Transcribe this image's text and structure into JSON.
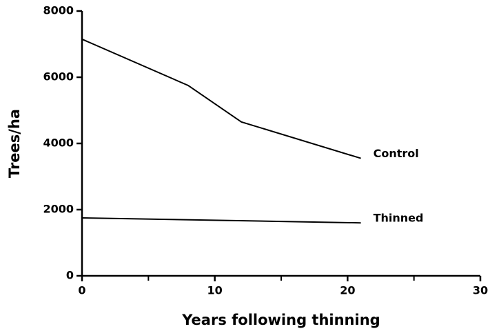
{
  "chart_data": {
    "type": "line",
    "xlabel": "Years following thinning",
    "ylabel": "Trees/ha",
    "series": [
      {
        "name": "Control",
        "color": "#000000",
        "x": [
          0,
          8,
          12,
          21
        ],
        "values": [
          7150,
          5750,
          4650,
          3550
        ]
      },
      {
        "name": "Thinned",
        "color": "#000000",
        "x": [
          0,
          21
        ],
        "values": [
          1750,
          1600
        ]
      }
    ],
    "xlim": [
      0,
      30
    ],
    "xticks": [
      0,
      10,
      20,
      30
    ],
    "xticks_minor": [
      5,
      15,
      25
    ],
    "ylim": [
      0,
      8000
    ],
    "yticks": [
      0,
      2000,
      4000,
      6000,
      8000
    ],
    "grid": false
  }
}
